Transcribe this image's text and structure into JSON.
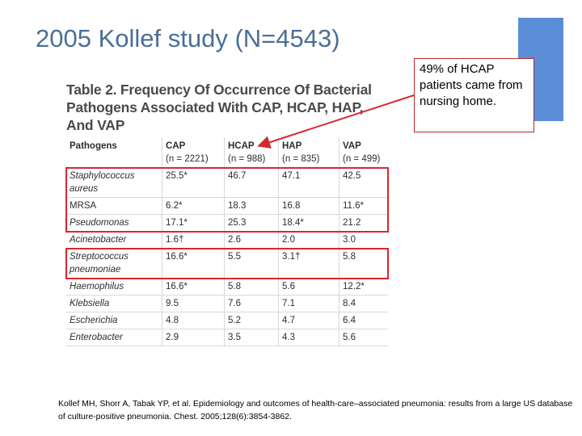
{
  "slide": {
    "title": "2005 Kollef study (N=4543)",
    "accent_color": "#5b8ed6",
    "highlight_color": "#d7282f"
  },
  "callout": {
    "text": "49% of HCAP patients came from nursing home."
  },
  "table": {
    "caption": "Table 2. Frequency Of Occurrence Of Bacterial Pathogens Associated With CAP, HCAP, HAP, And VAP",
    "headers": [
      {
        "name": "Pathogens",
        "n": ""
      },
      {
        "name": "CAP",
        "n": "(n = 2221)"
      },
      {
        "name": "HCAP",
        "n": "(n = 988)"
      },
      {
        "name": "HAP",
        "n": "(n = 835)"
      },
      {
        "name": "VAP",
        "n": "(n = 499)"
      }
    ],
    "rows": [
      {
        "pathogen": "Staphylococcus aureus",
        "italic": true,
        "cap": "25.5*",
        "hcap": "46.7",
        "hap": "47.1",
        "vap": "42.5"
      },
      {
        "pathogen": "MRSA",
        "italic": false,
        "cap": "6.2*",
        "hcap": "18.3",
        "hap": "16.8",
        "vap": "11.6*"
      },
      {
        "pathogen": "Pseudomonas",
        "italic": true,
        "cap": "17.1*",
        "hcap": "25.3",
        "hap": "18.4*",
        "vap": "21.2"
      },
      {
        "pathogen": "Acinetobacter",
        "italic": true,
        "cap": "1.6†",
        "hcap": "2.6",
        "hap": "2.0",
        "vap": "3.0"
      },
      {
        "pathogen": "Streptococcus pneumoniae",
        "italic": true,
        "cap": "16.6*",
        "hcap": "5.5",
        "hap": "3.1†",
        "vap": "5.8"
      },
      {
        "pathogen": "Haemophilus",
        "italic": true,
        "cap": "16.6*",
        "hcap": "5.8",
        "hap": "5.6",
        "vap": "12.2*"
      },
      {
        "pathogen": "Klebsiella",
        "italic": true,
        "cap": "9.5",
        "hcap": "7.6",
        "hap": "7.1",
        "vap": "8.4"
      },
      {
        "pathogen": "Escherichia",
        "italic": true,
        "cap": "4.8",
        "hcap": "5.2",
        "hap": "4.7",
        "vap": "6.4"
      },
      {
        "pathogen": "Enterobacter",
        "italic": true,
        "cap": "2.9",
        "hcap": "3.5",
        "hap": "4.3",
        "vap": "5.6"
      }
    ]
  },
  "citation": "Kollef MH, Shorr A, Tabak YP, et al. Epidemiology and outcomes of health-care–associated pneumonia: results from a large US database of culture-positive pneumonia. Chest. 2005;128(6):3854-3862."
}
